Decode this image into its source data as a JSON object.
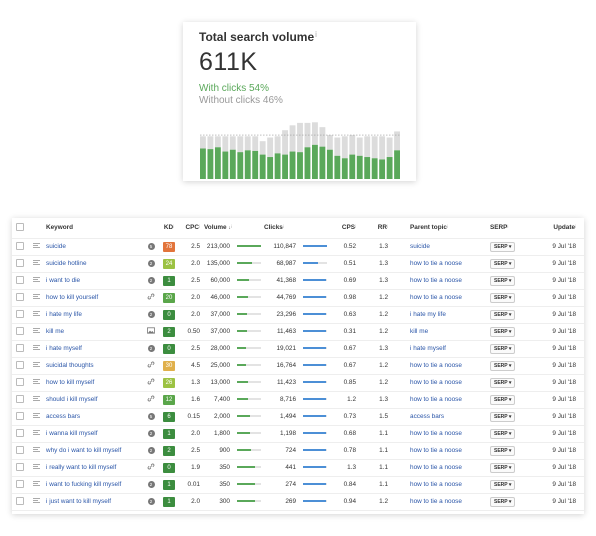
{
  "card": {
    "title": "Total search volume",
    "info_mark": "i",
    "value": "611K",
    "with_clicks": "With clicks 54%",
    "without_clicks": "Without clicks 46%",
    "chart_data": {
      "type": "bar",
      "stacked": true,
      "series": [
        {
          "values": [
            0.5,
            0.49,
            0.52,
            0.45,
            0.48,
            0.44,
            0.47,
            0.46,
            0.4,
            0.36,
            0.42,
            0.4,
            0.45,
            0.44,
            0.52,
            0.56,
            0.53,
            0.48,
            0.38,
            0.34,
            0.4,
            0.38,
            0.36,
            0.34,
            0.32,
            0.36,
            0.47
          ]
        },
        {
          "values": [
            0.7,
            0.7,
            0.7,
            0.7,
            0.7,
            0.7,
            0.7,
            0.7,
            0.62,
            0.68,
            0.7,
            0.8,
            0.88,
            0.92,
            0.92,
            0.93,
            0.85,
            0.72,
            0.68,
            0.7,
            0.72,
            0.68,
            0.7,
            0.7,
            0.7,
            0.68,
            0.78
          ]
        }
      ],
      "colors": [
        "#5aa85a",
        "#dcdcdc"
      ],
      "dotted_reference_line": true
    }
  },
  "table": {
    "headers": {
      "keyword": "Keyword",
      "kd": "KD",
      "cpc": "CPC",
      "volume": "Volume",
      "clicks": "Clicks",
      "cps": "CPS",
      "rr": "RR",
      "parent_topic": "Parent topic",
      "serp": "SERP",
      "update": "Update",
      "sup": "i"
    },
    "serp_label": "SERP ▾",
    "rows": [
      {
        "keyword": "suicide",
        "sf": "badge",
        "sf_text": "5",
        "kd": "78",
        "kd_color": "#e2743b",
        "cpc": "2.5",
        "volume": "213,000",
        "vol_frac": 1.0,
        "clicks": "110,847",
        "clk_frac": 1.0,
        "cps": "0.52",
        "rr": "1.3",
        "parent_topic": "suicide",
        "update": "9 Jul '18"
      },
      {
        "keyword": "suicide hotline",
        "sf": "badge",
        "sf_text": "2",
        "kd": "24",
        "kd_color": "#9cc243",
        "cpc": "2.0",
        "volume": "135,000",
        "vol_frac": 0.63,
        "clicks": "68,987",
        "clk_frac": 0.62,
        "cps": "0.51",
        "rr": "1.3",
        "parent_topic": "how to tie a noose",
        "update": "9 Jul '18"
      },
      {
        "keyword": "i want to die",
        "sf": "badge",
        "sf_text": "2",
        "kd": "1",
        "kd_color": "#3c8d3f",
        "cpc": "2.5",
        "volume": "60,000",
        "vol_frac": 0.5,
        "clicks": "41,368",
        "clk_frac": 0.95,
        "cps": "0.69",
        "rr": "1.3",
        "parent_topic": "how to tie a noose",
        "update": "9 Jul '18"
      },
      {
        "keyword": "how to kill yourself",
        "sf": "link",
        "sf_text": "",
        "kd": "20",
        "kd_color": "#5aa64a",
        "cpc": "2.0",
        "volume": "46,000",
        "vol_frac": 0.45,
        "clicks": "44,769",
        "clk_frac": 0.95,
        "cps": "0.98",
        "rr": "1.2",
        "parent_topic": "how to tie a noose",
        "update": "9 Jul '18"
      },
      {
        "keyword": "i hate my life",
        "sf": "badge",
        "sf_text": "2",
        "kd": "0",
        "kd_color": "#3c8d3f",
        "cpc": "2.0",
        "volume": "37,000",
        "vol_frac": 0.4,
        "clicks": "23,296",
        "clk_frac": 0.95,
        "cps": "0.63",
        "rr": "1.2",
        "parent_topic": "i hate my life",
        "update": "9 Jul '18"
      },
      {
        "keyword": "kill me",
        "sf": "image",
        "sf_text": "",
        "kd": "2",
        "kd_color": "#3c8d3f",
        "cpc": "0.50",
        "volume": "37,000",
        "vol_frac": 0.4,
        "clicks": "11,463",
        "clk_frac": 0.95,
        "cps": "0.31",
        "rr": "1.2",
        "parent_topic": "kill me",
        "update": "9 Jul '18"
      },
      {
        "keyword": "i hate myself",
        "sf": "badge",
        "sf_text": "2",
        "kd": "0",
        "kd_color": "#3c8d3f",
        "cpc": "2.5",
        "volume": "28,000",
        "vol_frac": 0.38,
        "clicks": "19,021",
        "clk_frac": 0.95,
        "cps": "0.67",
        "rr": "1.3",
        "parent_topic": "i hate myself",
        "update": "9 Jul '18"
      },
      {
        "keyword": "suicidal thoughts",
        "sf": "link",
        "sf_text": "",
        "kd": "30",
        "kd_color": "#e0b04b",
        "cpc": "4.5",
        "volume": "25,000",
        "vol_frac": 0.38,
        "clicks": "16,764",
        "clk_frac": 0.95,
        "cps": "0.67",
        "rr": "1.2",
        "parent_topic": "how to tie a noose",
        "update": "9 Jul '18"
      },
      {
        "keyword": "how to kill myself",
        "sf": "link",
        "sf_text": "",
        "kd": "26",
        "kd_color": "#9cc243",
        "cpc": "1.3",
        "volume": "13,000",
        "vol_frac": 0.45,
        "clicks": "11,423",
        "clk_frac": 0.95,
        "cps": "0.85",
        "rr": "1.2",
        "parent_topic": "how to tie a noose",
        "update": "9 Jul '18"
      },
      {
        "keyword": "should i kill myself",
        "sf": "link",
        "sf_text": "",
        "kd": "12",
        "kd_color": "#5aa64a",
        "cpc": "1.6",
        "volume": "7,400",
        "vol_frac": 0.45,
        "clicks": "8,716",
        "clk_frac": 0.95,
        "cps": "1.2",
        "rr": "1.3",
        "parent_topic": "how to tie a noose",
        "update": "9 Jul '18"
      },
      {
        "keyword": "access bars",
        "sf": "badge",
        "sf_text": "5",
        "kd": "6",
        "kd_color": "#3c8d3f",
        "cpc": "0.15",
        "volume": "2,000",
        "vol_frac": 0.55,
        "clicks": "1,494",
        "clk_frac": 0.95,
        "cps": "0.73",
        "rr": "1.5",
        "parent_topic": "access bars",
        "update": "9 Jul '18"
      },
      {
        "keyword": "i wanna kill myself",
        "sf": "badge",
        "sf_text": "2",
        "kd": "1",
        "kd_color": "#3c8d3f",
        "cpc": "2.0",
        "volume": "1,800",
        "vol_frac": 0.55,
        "clicks": "1,198",
        "clk_frac": 0.95,
        "cps": "0.68",
        "rr": "1.1",
        "parent_topic": "how to tie a noose",
        "update": "9 Jul '18"
      },
      {
        "keyword": "why do i want to kill myself",
        "sf": "badge",
        "sf_text": "2",
        "kd": "2",
        "kd_color": "#3c8d3f",
        "cpc": "2.5",
        "volume": "900",
        "vol_frac": 0.6,
        "clicks": "724",
        "clk_frac": 0.95,
        "cps": "0.78",
        "rr": "1.1",
        "parent_topic": "how to tie a noose",
        "update": "9 Jul '18"
      },
      {
        "keyword": "i really want to kill myself",
        "sf": "link",
        "sf_text": "",
        "kd": "0",
        "kd_color": "#3c8d3f",
        "cpc": "1.9",
        "volume": "350",
        "vol_frac": 0.75,
        "clicks": "441",
        "clk_frac": 0.95,
        "cps": "1.3",
        "rr": "1.1",
        "parent_topic": "how to tie a noose",
        "update": "9 Jul '18"
      },
      {
        "keyword": "i want to fucking kill myself",
        "sf": "badge",
        "sf_text": "2",
        "kd": "1",
        "kd_color": "#3c8d3f",
        "cpc": "0.01",
        "volume": "350",
        "vol_frac": 0.75,
        "clicks": "274",
        "clk_frac": 0.95,
        "cps": "0.84",
        "rr": "1.1",
        "parent_topic": "how to tie a noose",
        "update": "9 Jul '18"
      },
      {
        "keyword": "i just want to kill myself",
        "sf": "badge",
        "sf_text": "2",
        "kd": "1",
        "kd_color": "#3c8d3f",
        "cpc": "2.0",
        "volume": "300",
        "vol_frac": 0.75,
        "clicks": "269",
        "clk_frac": 0.95,
        "cps": "0.94",
        "rr": "1.2",
        "parent_topic": "how to tie a noose",
        "update": "9 Jul '18"
      }
    ]
  }
}
